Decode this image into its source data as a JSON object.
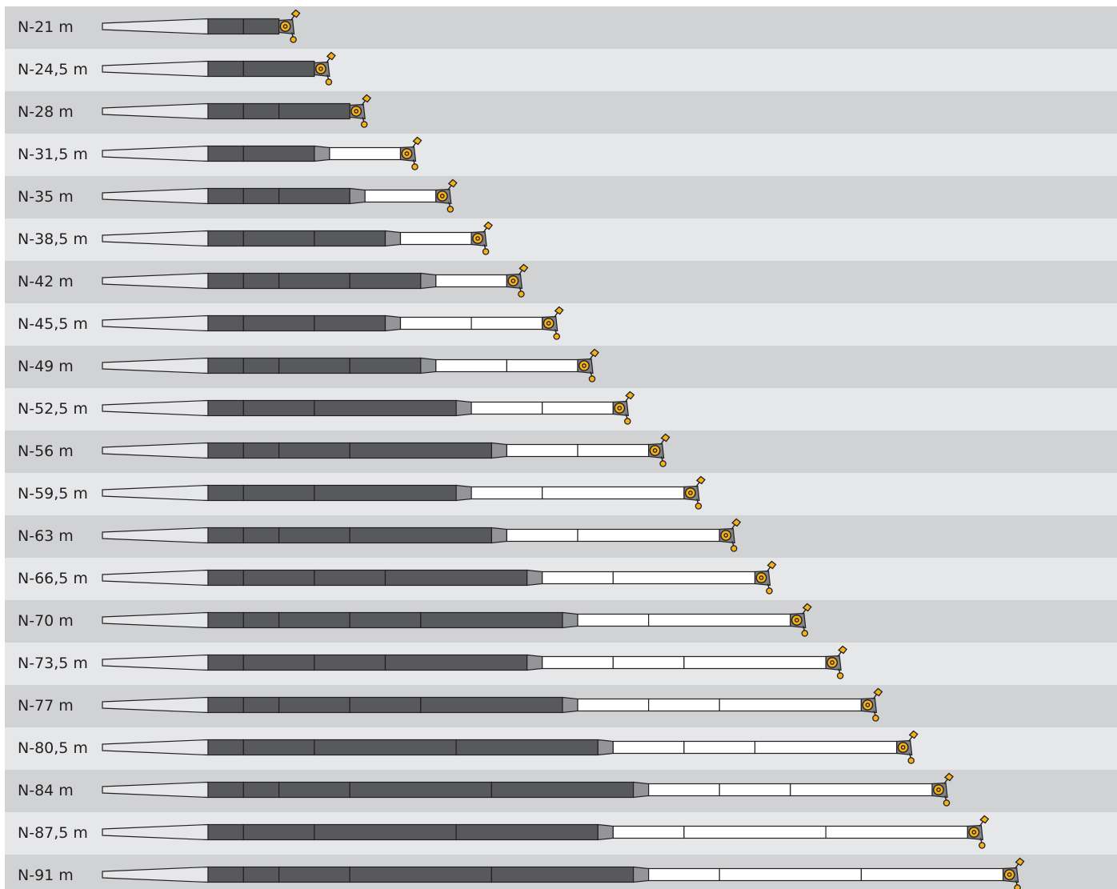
{
  "colors": {
    "row_odd": "#d1d2d4",
    "row_even": "#e6e7e9",
    "base": "#e6e7e9",
    "inner": "#58595b",
    "taper": "#939598",
    "outer": "#ffffff",
    "stroke": "#231f20",
    "head": "#808285",
    "pulley": "#f5b218"
  },
  "rows": [
    {
      "label": "N-21 m",
      "inner": [
        1,
        1
      ],
      "outer": []
    },
    {
      "label": "N-24,5 m",
      "inner": [
        1,
        2
      ],
      "outer": []
    },
    {
      "label": "N-28 m",
      "inner": [
        1,
        1,
        2
      ],
      "outer": []
    },
    {
      "label": "N-31,5 m",
      "inner": [
        1,
        2
      ],
      "outer": [
        2
      ]
    },
    {
      "label": "N-35 m",
      "inner": [
        1,
        1,
        2
      ],
      "outer": [
        2
      ]
    },
    {
      "label": "N-38,5 m",
      "inner": [
        1,
        2,
        2
      ],
      "outer": [
        2
      ]
    },
    {
      "label": "N-42 m",
      "inner": [
        1,
        1,
        2,
        2
      ],
      "outer": [
        2
      ]
    },
    {
      "label": "N-45,5 m",
      "inner": [
        1,
        2,
        2
      ],
      "outer": [
        2,
        2
      ]
    },
    {
      "label": "N-49 m",
      "inner": [
        1,
        1,
        2,
        2
      ],
      "outer": [
        2,
        2
      ]
    },
    {
      "label": "N-52,5 m",
      "inner": [
        1,
        2,
        4
      ],
      "outer": [
        2,
        2
      ]
    },
    {
      "label": "N-56 m",
      "inner": [
        1,
        1,
        2,
        4
      ],
      "outer": [
        2,
        2
      ]
    },
    {
      "label": "N-59,5 m",
      "inner": [
        1,
        2,
        4
      ],
      "outer": [
        2,
        4
      ]
    },
    {
      "label": "N-63 m",
      "inner": [
        1,
        1,
        2,
        4
      ],
      "outer": [
        2,
        4
      ]
    },
    {
      "label": "N-66,5 m",
      "inner": [
        1,
        2,
        2,
        4
      ],
      "outer": [
        2,
        4
      ]
    },
    {
      "label": "N-70 m",
      "inner": [
        1,
        1,
        2,
        2,
        4
      ],
      "outer": [
        2,
        4
      ]
    },
    {
      "label": "N-73,5 m",
      "inner": [
        1,
        2,
        2,
        4
      ],
      "outer": [
        2,
        2,
        4
      ]
    },
    {
      "label": "N-77 m",
      "inner": [
        1,
        1,
        2,
        2,
        4
      ],
      "outer": [
        2,
        2,
        4
      ]
    },
    {
      "label": "N-80,5 m",
      "inner": [
        1,
        2,
        4,
        4
      ],
      "outer": [
        2,
        2,
        4
      ]
    },
    {
      "label": "N-84 m",
      "inner": [
        1,
        1,
        2,
        4,
        4
      ],
      "outer": [
        2,
        2,
        4
      ]
    },
    {
      "label": "N-87,5 m",
      "inner": [
        1,
        2,
        4,
        4
      ],
      "outer": [
        2,
        4,
        4
      ]
    },
    {
      "label": "N-91 m",
      "inner": [
        1,
        1,
        2,
        4,
        4
      ],
      "outer": [
        2,
        4,
        4
      ]
    }
  ]
}
